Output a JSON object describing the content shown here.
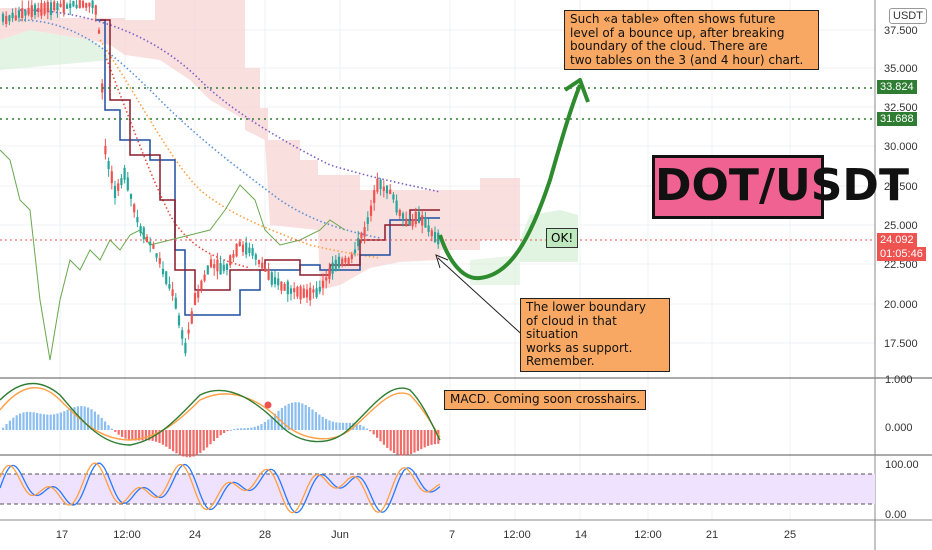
{
  "chart_data": {
    "type": "candlestick",
    "symbol": "DOT/USDT",
    "currency_label": "USDT",
    "price_axis": {
      "ticks": [
        "37.500",
        "35.000",
        "32.500",
        "30.000",
        "27.500",
        "25.000",
        "22.500",
        "20.000",
        "17.500"
      ]
    },
    "macd_axis": {
      "ticks": [
        "1.000",
        "0.000"
      ]
    },
    "stoch_axis": {
      "ticks": [
        "100.00",
        "0.00"
      ]
    },
    "x_axis": {
      "ticks": [
        "17",
        "12:00",
        "24",
        "28",
        "Jun",
        "7",
        "12:00",
        "14",
        "12:00",
        "21",
        "25"
      ]
    },
    "price_tags": [
      {
        "value": "33.824",
        "color": "#2e7d32"
      },
      {
        "value": "31.688",
        "color": "#2e7d32"
      },
      {
        "value": "24.092",
        "color": "#ef5350"
      },
      {
        "value": "01:05:46",
        "color": "#ef5350"
      }
    ],
    "last_price": 24.092,
    "annotations": {
      "table_note": "Such «a table» often shows future\n level of a bounce up, after breaking\n boundary of the cloud. There are\ntwo tables on the 3 (and 4 hour) chart.",
      "support_note": "The lower boundary\nof cloud in that situation\nworks as support.\nRemember.",
      "macd_note": "MACD. Coming soon crosshairs.",
      "ok_label": "OK!"
    },
    "title_box": "DOT/USDT",
    "colors": {
      "up": "#26a69a",
      "down": "#ef5350",
      "arrow": "#2e8b2e",
      "cloud": "#f5c6c6",
      "stoch_band": "#efe0ff"
    }
  }
}
